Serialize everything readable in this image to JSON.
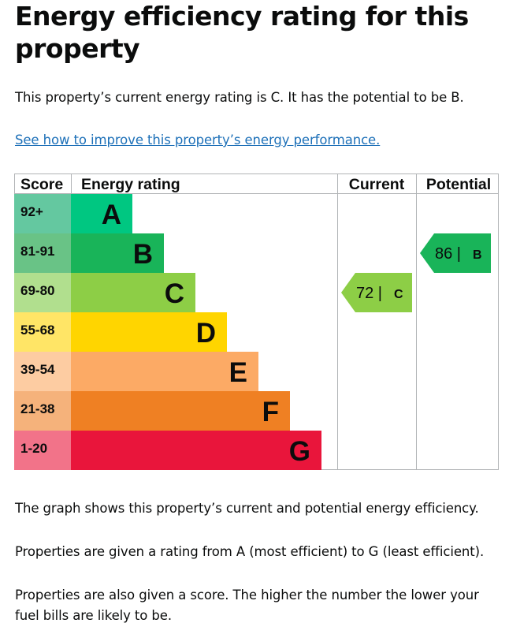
{
  "page": {
    "title": "Energy efficiency rating for this property",
    "summary": "This property’s current energy rating is C. It has the potential to be B.",
    "improve_link": "See how to improve this property’s energy performance.",
    "graph_note": "The graph shows this property’s current and potential energy efficiency.",
    "rating_note": "Properties are given a rating from A (most efficient) to G (least efficient).",
    "score_note": "Properties are also given a score. The higher the number the lower your fuel bills are likely to be."
  },
  "chart_data": {
    "type": "bar",
    "headers": {
      "score": "Score",
      "energy_rating": "Energy rating",
      "current": "Current",
      "potential": "Potential"
    },
    "bands": [
      {
        "letter": "A",
        "range": "92+",
        "color": "#00c781",
        "score_bg": "#64c8a0",
        "letter_color": "#0b0c0c"
      },
      {
        "letter": "B",
        "range": "81-91",
        "color": "#19b459",
        "score_bg": "#69c386",
        "letter_color": "#0b0c0c"
      },
      {
        "letter": "C",
        "range": "69-80",
        "color": "#8dce46",
        "score_bg": "#b1df8e",
        "letter_color": "#0b0c0c"
      },
      {
        "letter": "D",
        "range": "55-68",
        "color": "#ffd500",
        "score_bg": "#ffe566",
        "letter_color": "#0b0c0c"
      },
      {
        "letter": "E",
        "range": "39-54",
        "color": "#fcaa65",
        "score_bg": "#fdcca2",
        "letter_color": "#0b0c0c"
      },
      {
        "letter": "F",
        "range": "21-38",
        "color": "#ef8023",
        "score_bg": "#f5b27b",
        "letter_color": "#0b0c0c"
      },
      {
        "letter": "G",
        "range": "1-20",
        "color": "#e9153b",
        "score_bg": "#f27389",
        "letter_color": "#0b0c0c"
      }
    ],
    "current": {
      "score": 72,
      "score_label": "72 |",
      "letter": "C",
      "color": "#8dce46",
      "text_color": "#0b0c0c"
    },
    "potential": {
      "score": 86,
      "score_label": "86 |",
      "letter": "B",
      "color": "#19b459",
      "text_color": "#0b0c0c"
    }
  }
}
